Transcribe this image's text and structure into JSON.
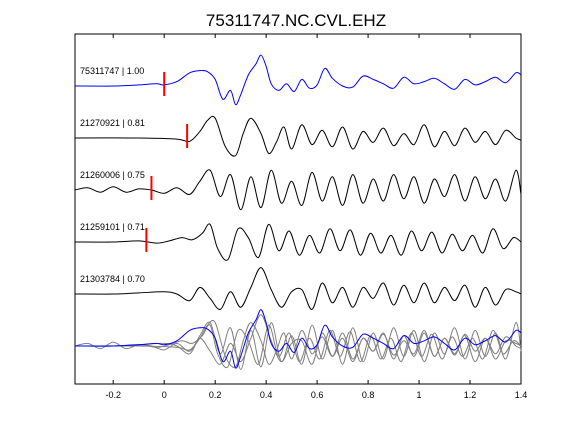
{
  "chart_data": {
    "type": "line",
    "title": "75311747.NC.CVL.EHZ",
    "xlabel": "",
    "ylabel": "",
    "xlim": [
      -0.35,
      1.4
    ],
    "x_ticks": [
      -0.2,
      0,
      0.2,
      0.4,
      0.6,
      0.8,
      1,
      1.2,
      1.4
    ],
    "x_tick_labels": [
      "-0.2",
      "0",
      "0.2",
      "0.4",
      "0.6",
      "0.8",
      "1",
      "1.2",
      "1.4"
    ],
    "grid": false,
    "legend": "none",
    "colors": {
      "template": "#0000ff",
      "trace": "#000000",
      "overlay": "#808080",
      "pick": "#ff0000"
    },
    "traces": [
      {
        "event_id": "75311747",
        "cc": "1.00",
        "label": "75311747 | 1.00",
        "color": "#0000ff",
        "pick_time": 0.0,
        "waveform": {
          "x": [
            -0.35,
            -0.2,
            -0.1,
            -0.03,
            0,
            0.05,
            0.1,
            0.14,
            0.17,
            0.2,
            0.23,
            0.26,
            0.28,
            0.3,
            0.33,
            0.36,
            0.38,
            0.4,
            0.42,
            0.45,
            0.48,
            0.51,
            0.54,
            0.57,
            0.6,
            0.63,
            0.66,
            0.7,
            0.74,
            0.78,
            0.82,
            0.86,
            0.9,
            0.94,
            0.98,
            1.02,
            1.06,
            1.1,
            1.14,
            1.18,
            1.22,
            1.26,
            1.3,
            1.34,
            1.38,
            1.4
          ],
          "y": [
            0.0,
            0.0,
            0.05,
            0.1,
            0.05,
            0.2,
            0.6,
            0.7,
            0.65,
            0.3,
            -0.6,
            -0.2,
            -0.85,
            -0.4,
            0.5,
            1.0,
            1.4,
            0.9,
            0.1,
            -0.2,
            0.1,
            -0.25,
            0.3,
            -0.1,
            0.05,
            0.8,
            0.35,
            0.0,
            -0.05,
            0.45,
            0.3,
            0.1,
            -0.1,
            0.4,
            0.1,
            0.2,
            0.35,
            0.1,
            -0.15,
            0.3,
            0.05,
            0.2,
            0.4,
            0.15,
            0.6,
            0.5
          ]
        }
      },
      {
        "event_id": "21270921",
        "cc": "0.81",
        "label": "21270921 | 0.81",
        "color": "#000000",
        "pick_time": 0.09,
        "waveform": {
          "x": [
            -0.35,
            -0.1,
            0.05,
            0.1,
            0.14,
            0.17,
            0.2,
            0.24,
            0.28,
            0.31,
            0.34,
            0.38,
            0.41,
            0.44,
            0.47,
            0.5,
            0.54,
            0.58,
            0.62,
            0.66,
            0.7,
            0.74,
            0.78,
            0.82,
            0.86,
            0.9,
            0.94,
            0.98,
            1.02,
            1.06,
            1.1,
            1.14,
            1.18,
            1.22,
            1.26,
            1.3,
            1.34,
            1.38,
            1.4
          ],
          "y": [
            0.0,
            0.0,
            -0.05,
            -0.15,
            0.3,
            0.8,
            0.9,
            -0.4,
            -0.8,
            0.2,
            0.9,
            0.2,
            -0.7,
            -0.2,
            0.5,
            -0.5,
            0.6,
            -0.3,
            0.35,
            -0.4,
            0.5,
            -0.5,
            0.3,
            -0.2,
            0.45,
            -0.35,
            0.2,
            -0.3,
            0.6,
            -0.4,
            0.3,
            -0.35,
            0.45,
            -0.2,
            0.3,
            -0.3,
            0.35,
            0.0,
            -0.1
          ]
        }
      },
      {
        "event_id": "21260006",
        "cc": "0.75",
        "label": "21260006 | 0.75",
        "color": "#000000",
        "pick_time": -0.05,
        "waveform": {
          "x": [
            -0.35,
            -0.3,
            -0.25,
            -0.2,
            -0.15,
            -0.1,
            -0.05,
            0.0,
            0.05,
            0.1,
            0.14,
            0.18,
            0.22,
            0.26,
            0.3,
            0.34,
            0.38,
            0.42,
            0.46,
            0.5,
            0.54,
            0.58,
            0.62,
            0.66,
            0.7,
            0.74,
            0.78,
            0.82,
            0.86,
            0.9,
            0.94,
            0.98,
            1.02,
            1.06,
            1.1,
            1.14,
            1.18,
            1.22,
            1.26,
            1.3,
            1.34,
            1.38,
            1.4
          ],
          "y": [
            0.0,
            0.1,
            -0.1,
            0.15,
            -0.1,
            0.05,
            0.0,
            -0.15,
            0.1,
            -0.2,
            0.4,
            0.9,
            -0.3,
            0.7,
            -0.9,
            0.6,
            -0.8,
            0.9,
            -0.6,
            0.4,
            -0.7,
            0.8,
            -0.5,
            0.6,
            -0.7,
            0.7,
            -0.6,
            0.5,
            -0.5,
            0.7,
            -0.4,
            0.6,
            -0.6,
            0.5,
            -0.3,
            0.7,
            -0.5,
            0.6,
            -0.4,
            0.5,
            -0.5,
            0.9,
            -0.2
          ]
        }
      },
      {
        "event_id": "21259101",
        "cc": "0.71",
        "label": "21259101 | 0.71",
        "color": "#000000",
        "pick_time": -0.07,
        "waveform": {
          "x": [
            -0.35,
            -0.2,
            -0.1,
            -0.03,
            0.02,
            0.07,
            0.11,
            0.15,
            0.18,
            0.21,
            0.25,
            0.29,
            0.33,
            0.37,
            0.41,
            0.45,
            0.49,
            0.53,
            0.57,
            0.61,
            0.65,
            0.69,
            0.73,
            0.77,
            0.81,
            0.85,
            0.89,
            0.93,
            0.97,
            1.01,
            1.05,
            1.09,
            1.13,
            1.17,
            1.21,
            1.25,
            1.29,
            1.33,
            1.37,
            1.4
          ],
          "y": [
            0.0,
            0.0,
            0.05,
            -0.05,
            0.05,
            0.2,
            0.1,
            0.4,
            0.8,
            -0.3,
            -0.8,
            0.6,
            0.2,
            -0.7,
            0.8,
            -0.4,
            0.5,
            -0.6,
            0.3,
            -0.5,
            0.6,
            -0.4,
            0.55,
            -0.6,
            0.4,
            -0.5,
            0.3,
            -0.6,
            0.5,
            -0.4,
            0.45,
            -0.5,
            0.35,
            -0.4,
            0.3,
            -0.5,
            0.6,
            -0.3,
            0.2,
            0.0
          ]
        }
      },
      {
        "event_id": "21303784",
        "cc": "0.70",
        "label": "21303784 | 0.70",
        "color": "#000000",
        "pick_time": null,
        "waveform": {
          "x": [
            -0.35,
            -0.2,
            -0.1,
            0.0,
            0.05,
            0.1,
            0.14,
            0.18,
            0.22,
            0.26,
            0.3,
            0.34,
            0.38,
            0.42,
            0.46,
            0.5,
            0.54,
            0.58,
            0.62,
            0.66,
            0.7,
            0.74,
            0.78,
            0.82,
            0.86,
            0.9,
            0.94,
            0.98,
            1.02,
            1.06,
            1.1,
            1.14,
            1.18,
            1.22,
            1.26,
            1.3,
            1.34,
            1.38,
            1.4
          ],
          "y": [
            0.0,
            0.0,
            0.05,
            0.1,
            0.0,
            -0.3,
            0.3,
            -0.2,
            -0.7,
            0.1,
            -0.6,
            0.3,
            1.2,
            0.2,
            -0.6,
            0.1,
            0.2,
            -0.7,
            0.5,
            -0.4,
            0.3,
            -0.6,
            0.3,
            -0.2,
            0.5,
            -0.5,
            0.4,
            -0.4,
            0.5,
            -0.4,
            0.3,
            -0.3,
            0.4,
            -0.6,
            0.3,
            -0.5,
            0.2,
            0.1,
            0.0
          ]
        }
      }
    ],
    "overlay": {
      "description_free": true,
      "template_index": 0,
      "others": [
        1,
        2,
        3,
        4
      ]
    }
  }
}
